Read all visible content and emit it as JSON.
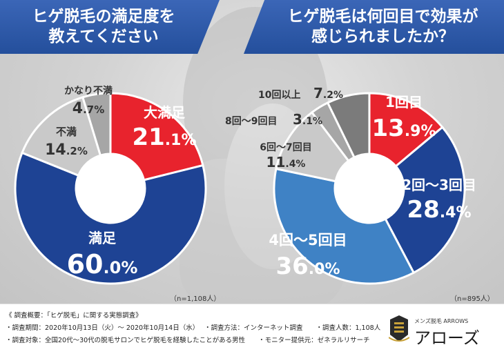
{
  "left_banner": "ヒゲ脱毛の満足度を\n教えてください",
  "right_banner": "ヒゲ脱毛は何回目で効果が\n感じられましたか？",
  "colors": {
    "red": "#e8232d",
    "navy": "#1e4394",
    "blue": "#3f82c5",
    "light_gray": "#c9c9c9",
    "gray": "#a6a6a6",
    "dark_gray": "#7b7b7b",
    "banner": "#2f5aaa"
  },
  "chart_data": [
    {
      "type": "pie",
      "title": "ヒゲ脱毛の満足度を教えてください",
      "note": "（n=1,108人）",
      "slices": [
        {
          "label": "大満足",
          "int": "21",
          "dec": ".1%",
          "value": 21.1,
          "color": "#e8232d"
        },
        {
          "label": "満足",
          "int": "60",
          "dec": ".0%",
          "value": 60.0,
          "color": "#1e4394"
        },
        {
          "label": "不満",
          "int": "14",
          "dec": ".2%",
          "value": 14.2,
          "color": "#c9c9c9"
        },
        {
          "label": "かなり不満",
          "int": "4",
          "dec": ".7%",
          "value": 4.7,
          "color": "#a6a6a6"
        }
      ]
    },
    {
      "type": "pie",
      "title": "ヒゲ脱毛は何回目で効果が感じられましたか？",
      "note": "（n=895人）",
      "slices": [
        {
          "label": "1回目",
          "int": "13",
          "dec": ".9%",
          "value": 13.9,
          "color": "#e8232d"
        },
        {
          "label": "2回〜3回目",
          "int": "28",
          "dec": ".4%",
          "value": 28.4,
          "color": "#1e4394"
        },
        {
          "label": "4回〜5回目",
          "int": "36",
          "dec": ".0%",
          "value": 36.0,
          "color": "#3f82c5"
        },
        {
          "label": "6回〜7回目",
          "int": "11",
          "dec": ".4%",
          "value": 11.4,
          "color": "#c9c9c9"
        },
        {
          "label": "8回〜9回目",
          "int": "3",
          "dec": ".1%",
          "value": 3.1,
          "color": "#a6a6a6"
        },
        {
          "label": "10回以上",
          "int": "7",
          "dec": ".2%",
          "value": 7.2,
          "color": "#7b7b7b"
        }
      ]
    }
  ],
  "footer": {
    "line1": "《 調査概要：「ヒゲ脱毛」に関する実態調査》",
    "line2": "・調査期間：2020年10月13日（火）〜 2020年10月14日（水）　 ・調査方法：インターネット調査　　・調査人数：1,108人",
    "line3": "・調査対象：全国20代〜30代の脱毛サロンでヒゲ脱毛を経験したことがある男性　　・モニター提供元：ゼネラルリサーチ"
  },
  "logo": {
    "small": "メンズ脱毛 ARROWS",
    "big": "アローズ"
  }
}
